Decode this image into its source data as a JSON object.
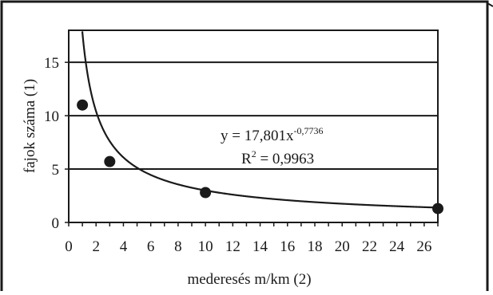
{
  "chart_data": {
    "type": "scatter",
    "xlabel": "mederesés m/km (2)",
    "ylabel": "fajok száma (1)",
    "xlim": [
      0,
      27
    ],
    "ylim": [
      0,
      18
    ],
    "x_ticks": [
      "0",
      "2",
      "4",
      "6",
      "8",
      "10",
      "12",
      "14",
      "16",
      "18",
      "20",
      "22",
      "24",
      "26"
    ],
    "y_ticks": [
      "0",
      "5",
      "10",
      "15"
    ],
    "grid": {
      "horizontal": true,
      "vertical": false
    },
    "points": [
      {
        "x": 1,
        "y": 11.0
      },
      {
        "x": 3,
        "y": 5.7
      },
      {
        "x": 10,
        "y": 2.8
      },
      {
        "x": 27,
        "y": 1.3
      }
    ],
    "trendline": {
      "type": "power",
      "coefficient": 17.801,
      "exponent": -0.7736,
      "equation_main": "y = 17,801x",
      "equation_exponent": "-0,7736",
      "r2_main": "R",
      "r2_exponent": "2",
      "r2_value": " = 0,9963"
    }
  }
}
